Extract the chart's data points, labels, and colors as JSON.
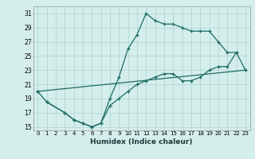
{
  "xlabel": "Humidex (Indice chaleur)",
  "bg_color": "#d4eeec",
  "grid_color": "#b0d8d5",
  "line_color": "#1e6b65",
  "xlim": [
    -0.5,
    23.5
  ],
  "ylim": [
    14.5,
    32
  ],
  "xticks": [
    0,
    1,
    2,
    3,
    4,
    5,
    6,
    7,
    8,
    9,
    10,
    11,
    12,
    13,
    14,
    15,
    16,
    17,
    18,
    19,
    20,
    21,
    22,
    23
  ],
  "yticks": [
    15,
    17,
    19,
    21,
    23,
    25,
    27,
    29,
    31
  ],
  "series": [
    {
      "x": [
        0,
        1,
        3,
        4,
        5,
        6,
        7,
        8,
        9,
        10,
        11,
        12,
        13,
        14,
        15,
        16,
        17,
        18,
        19,
        20,
        21,
        22
      ],
      "y": [
        20,
        18.5,
        17,
        16,
        15.5,
        15,
        15.5,
        19,
        22,
        26,
        28,
        31,
        30,
        29.5,
        29.5,
        29,
        28.5,
        28.5,
        28.5,
        27,
        25.5,
        25.5
      ]
    },
    {
      "x": [
        0,
        23
      ],
      "y": [
        20,
        23
      ]
    },
    {
      "x": [
        1,
        3,
        4,
        5,
        6,
        7,
        8,
        9,
        10,
        11,
        12,
        13,
        14,
        15,
        16,
        17,
        18,
        19,
        20,
        21,
        22,
        23
      ],
      "y": [
        18.5,
        17,
        16,
        15.5,
        15,
        15.5,
        18,
        19,
        20,
        21,
        21.5,
        22,
        22.5,
        22.5,
        21.5,
        21.5,
        22,
        23,
        23.5,
        23.5,
        25.5,
        23
      ]
    }
  ]
}
